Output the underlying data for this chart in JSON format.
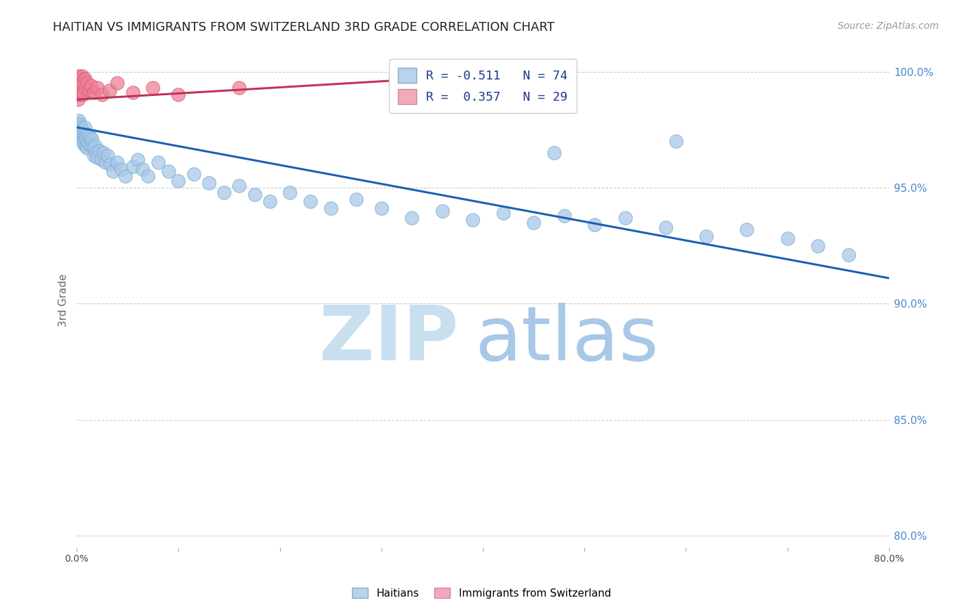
{
  "title": "HAITIAN VS IMMIGRANTS FROM SWITZERLAND 3RD GRADE CORRELATION CHART",
  "source": "Source: ZipAtlas.com",
  "ylabel": "3rd Grade",
  "watermark_zip": "ZIP",
  "watermark_atlas": "atlas",
  "legend_entries": [
    {
      "label": "R = -0.511   N = 74",
      "color": "#b8d4ec"
    },
    {
      "label": "R =  0.357   N = 29",
      "color": "#f4a8bc"
    }
  ],
  "bottom_legend": [
    "Haitians",
    "Immigrants from Switzerland"
  ],
  "bottom_legend_colors": [
    "#b8d4ec",
    "#f4a8bc"
  ],
  "xlim": [
    0.0,
    0.8
  ],
  "ylim": [
    0.795,
    1.008
  ],
  "yticks": [
    0.8,
    0.85,
    0.9,
    0.95,
    1.0
  ],
  "ytick_labels": [
    "80.0%",
    "85.0%",
    "90.0%",
    "95.0%",
    "100.0%"
  ],
  "xticks": [
    0.0,
    0.1,
    0.2,
    0.3,
    0.4,
    0.5,
    0.6,
    0.7,
    0.8
  ],
  "xtick_labels": [
    "0.0%",
    "",
    "",
    "",
    "",
    "",
    "",
    "",
    "80.0%"
  ],
  "blue_scatter_x": [
    0.001,
    0.001,
    0.002,
    0.002,
    0.003,
    0.003,
    0.004,
    0.004,
    0.005,
    0.005,
    0.006,
    0.006,
    0.007,
    0.007,
    0.008,
    0.008,
    0.009,
    0.009,
    0.01,
    0.01,
    0.011,
    0.012,
    0.013,
    0.014,
    0.015,
    0.016,
    0.017,
    0.018,
    0.019,
    0.02,
    0.022,
    0.024,
    0.026,
    0.028,
    0.03,
    0.033,
    0.036,
    0.04,
    0.044,
    0.048,
    0.055,
    0.06,
    0.065,
    0.07,
    0.08,
    0.09,
    0.1,
    0.115,
    0.13,
    0.145,
    0.16,
    0.175,
    0.19,
    0.21,
    0.23,
    0.25,
    0.275,
    0.3,
    0.33,
    0.36,
    0.39,
    0.42,
    0.45,
    0.48,
    0.51,
    0.54,
    0.58,
    0.62,
    0.66,
    0.7,
    0.73,
    0.76,
    0.59,
    0.47
  ],
  "blue_scatter_y": [
    0.978,
    0.974,
    0.979,
    0.975,
    0.977,
    0.973,
    0.976,
    0.972,
    0.975,
    0.971,
    0.974,
    0.97,
    0.973,
    0.969,
    0.972,
    0.976,
    0.968,
    0.971,
    0.967,
    0.97,
    0.973,
    0.969,
    0.972,
    0.968,
    0.971,
    0.967,
    0.964,
    0.968,
    0.965,
    0.963,
    0.966,
    0.962,
    0.965,
    0.961,
    0.964,
    0.96,
    0.957,
    0.961,
    0.958,
    0.955,
    0.959,
    0.962,
    0.958,
    0.955,
    0.961,
    0.957,
    0.953,
    0.956,
    0.952,
    0.948,
    0.951,
    0.947,
    0.944,
    0.948,
    0.944,
    0.941,
    0.945,
    0.941,
    0.937,
    0.94,
    0.936,
    0.939,
    0.935,
    0.938,
    0.934,
    0.937,
    0.933,
    0.929,
    0.932,
    0.928,
    0.925,
    0.921,
    0.97,
    0.965
  ],
  "pink_scatter_x": [
    0.001,
    0.001,
    0.002,
    0.002,
    0.002,
    0.003,
    0.003,
    0.004,
    0.004,
    0.005,
    0.005,
    0.006,
    0.006,
    0.007,
    0.008,
    0.009,
    0.01,
    0.012,
    0.014,
    0.017,
    0.02,
    0.025,
    0.032,
    0.04,
    0.055,
    0.075,
    0.1,
    0.16,
    0.33
  ],
  "pink_scatter_y": [
    0.988,
    0.993,
    0.998,
    0.994,
    0.99,
    0.996,
    0.992,
    0.997,
    0.993,
    0.998,
    0.994,
    0.99,
    0.995,
    0.991,
    0.997,
    0.993,
    0.995,
    0.992,
    0.994,
    0.991,
    0.993,
    0.99,
    0.992,
    0.995,
    0.991,
    0.993,
    0.99,
    0.993,
    0.997
  ],
  "blue_line_x": [
    0.0,
    0.8
  ],
  "blue_line_y": [
    0.976,
    0.911
  ],
  "pink_line_x": [
    0.0,
    0.345
  ],
  "pink_line_y": [
    0.988,
    0.997
  ],
  "blue_line_color": "#1a5fb4",
  "pink_line_color": "#c0325a",
  "blue_scatter_color": "#a8c8e8",
  "pink_scatter_color": "#f08098",
  "blue_scatter_edge": "#7aaed0",
  "pink_scatter_edge": "#d06070",
  "grid_color": "#cccccc",
  "title_color": "#222222",
  "axis_label_color": "#666666",
  "right_tick_color": "#4488cc",
  "zip_color": "#c8dff0",
  "atlas_color": "#a8c8e8",
  "watermark_fontsize": 80,
  "title_fontsize": 13,
  "source_fontsize": 10,
  "scatter_size": 200
}
